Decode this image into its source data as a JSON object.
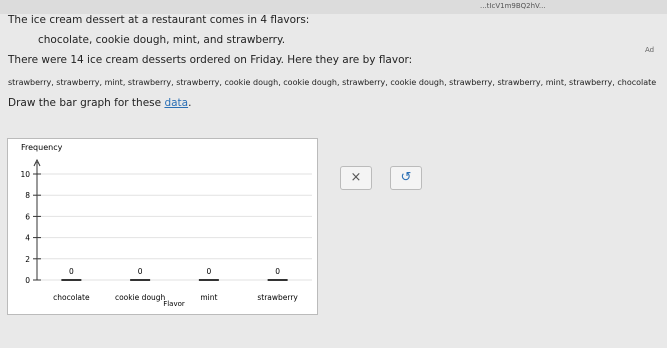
{
  "browser": {
    "url": "...tIcV1m9BQ2hV...",
    "side_label": "Ad"
  },
  "problem": {
    "line1": "The ice cream dessert at a restaurant comes in 4 flavors:",
    "line2": "chocolate, cookie dough, mint, and strawberry.",
    "line3": "There were 14 ice cream desserts ordered on Friday. Here they are by flavor:",
    "line4": "strawberry, strawberry, mint, strawberry, strawberry, cookie dough, cookie dough, strawberry, cookie dough, strawberry, strawberry, mint, strawberry, chocolate",
    "instruction": "Draw the bar graph for these",
    "link": "data",
    "end": "."
  },
  "graph": {
    "type": "bar",
    "y_label": "Frequency",
    "x_label": "Flavor",
    "categories": [
      "chocolate",
      "cookie dough",
      "mint",
      "strawberry"
    ],
    "values": [
      0,
      0,
      0,
      0
    ],
    "color": "#333333",
    "ylim": [
      0,
      10
    ],
    "yticks": [
      0,
      2,
      4,
      6,
      8,
      10
    ]
  },
  "buttons": {
    "clear": "×",
    "undo": "↺"
  }
}
